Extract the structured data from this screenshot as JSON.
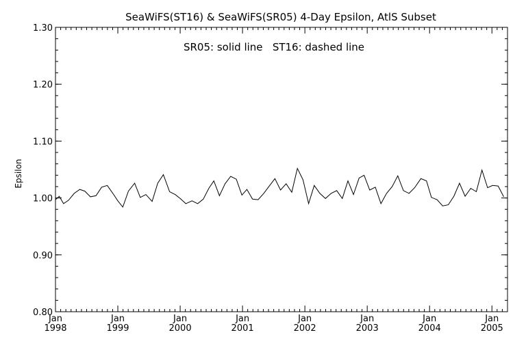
{
  "chart_data": {
    "type": "line",
    "title": "SeaWiFS(ST16) & SeaWiFS(SR05) 4-Day Epsilon, AtlS Subset",
    "annotation": "SR05: solid line   ST16: dashed line",
    "xlabel": "",
    "ylabel": "Epsilon",
    "xlim": [
      1998.0,
      2005.25
    ],
    "ylim": [
      0.8,
      1.3
    ],
    "yticks": [
      "0.80",
      "0.90",
      "1.00",
      "1.10",
      "1.20",
      "1.30"
    ],
    "xticks": [
      {
        "year": 1998,
        "month": "Jan",
        "label": "1998"
      },
      {
        "year": 1999,
        "month": "Jan",
        "label": "1999"
      },
      {
        "year": 2000,
        "month": "Jan",
        "label": "2000"
      },
      {
        "year": 2001,
        "month": "Jan",
        "label": "2001"
      },
      {
        "year": 2002,
        "month": "Jan",
        "label": "2002"
      },
      {
        "year": 2003,
        "month": "Jan",
        "label": "2003"
      },
      {
        "year": 2004,
        "month": "Jan",
        "label": "2004"
      },
      {
        "year": 2005,
        "month": "Jan",
        "label": "2005"
      }
    ],
    "grid": false,
    "series": [
      {
        "name": "SR05",
        "style": "solid",
        "color": "#000000",
        "x": [
          1998.0,
          1998.06,
          1998.13,
          1998.21,
          1998.3,
          1998.39,
          1998.47,
          1998.56,
          1998.65,
          1998.74,
          1998.83,
          1998.92,
          1999.0,
          1999.08,
          1999.17,
          1999.27,
          1999.36,
          1999.45,
          1999.55,
          1999.64,
          1999.73,
          1999.83,
          1999.92,
          2000.0,
          2000.09,
          2000.19,
          2000.28,
          2000.37,
          2000.46,
          2000.54,
          2000.63,
          2000.72,
          2000.81,
          2000.9,
          2000.99,
          2001.07,
          2001.16,
          2001.25,
          2001.34,
          2001.43,
          2001.52,
          2001.61,
          2001.7,
          2001.79,
          2001.88,
          2001.97,
          2002.06,
          2002.15,
          2002.24,
          2002.33,
          2002.42,
          2002.51,
          2002.6,
          2002.69,
          2002.78,
          2002.87,
          2002.95,
          2003.04,
          2003.13,
          2003.22,
          2003.31,
          2003.4,
          2003.49,
          2003.58,
          2003.67,
          2003.76,
          2003.86,
          2003.95,
          2004.03,
          2004.12,
          2004.21,
          2004.3,
          2004.39,
          2004.48,
          2004.57,
          2004.66,
          2004.75,
          2004.84,
          2004.93,
          2005.01,
          2005.1,
          2005.19
        ],
        "y": [
          0.997,
          1.003,
          0.99,
          0.996,
          1.008,
          1.015,
          1.012,
          1.002,
          1.004,
          1.019,
          1.022,
          1.008,
          0.995,
          0.984,
          1.012,
          1.026,
          1.001,
          1.006,
          0.994,
          1.026,
          1.041,
          1.011,
          1.006,
          0.999,
          0.99,
          0.995,
          0.99,
          0.998,
          1.017,
          1.03,
          1.004,
          1.025,
          1.038,
          1.033,
          1.005,
          1.015,
          0.998,
          0.997,
          1.008,
          1.021,
          1.034,
          1.014,
          1.025,
          1.01,
          1.052,
          1.032,
          0.99,
          1.022,
          1.008,
          0.999,
          1.008,
          1.013,
          0.999,
          1.03,
          1.006,
          1.035,
          1.04,
          1.014,
          1.019,
          0.99,
          1.008,
          1.02,
          1.039,
          1.013,
          1.008,
          1.018,
          1.034,
          1.03,
          1.001,
          0.997,
          0.986,
          0.988,
          1.003,
          1.026,
          1.003,
          1.017,
          1.011,
          1.049,
          1.018,
          1.022,
          1.021,
          1.002
        ]
      }
    ]
  }
}
